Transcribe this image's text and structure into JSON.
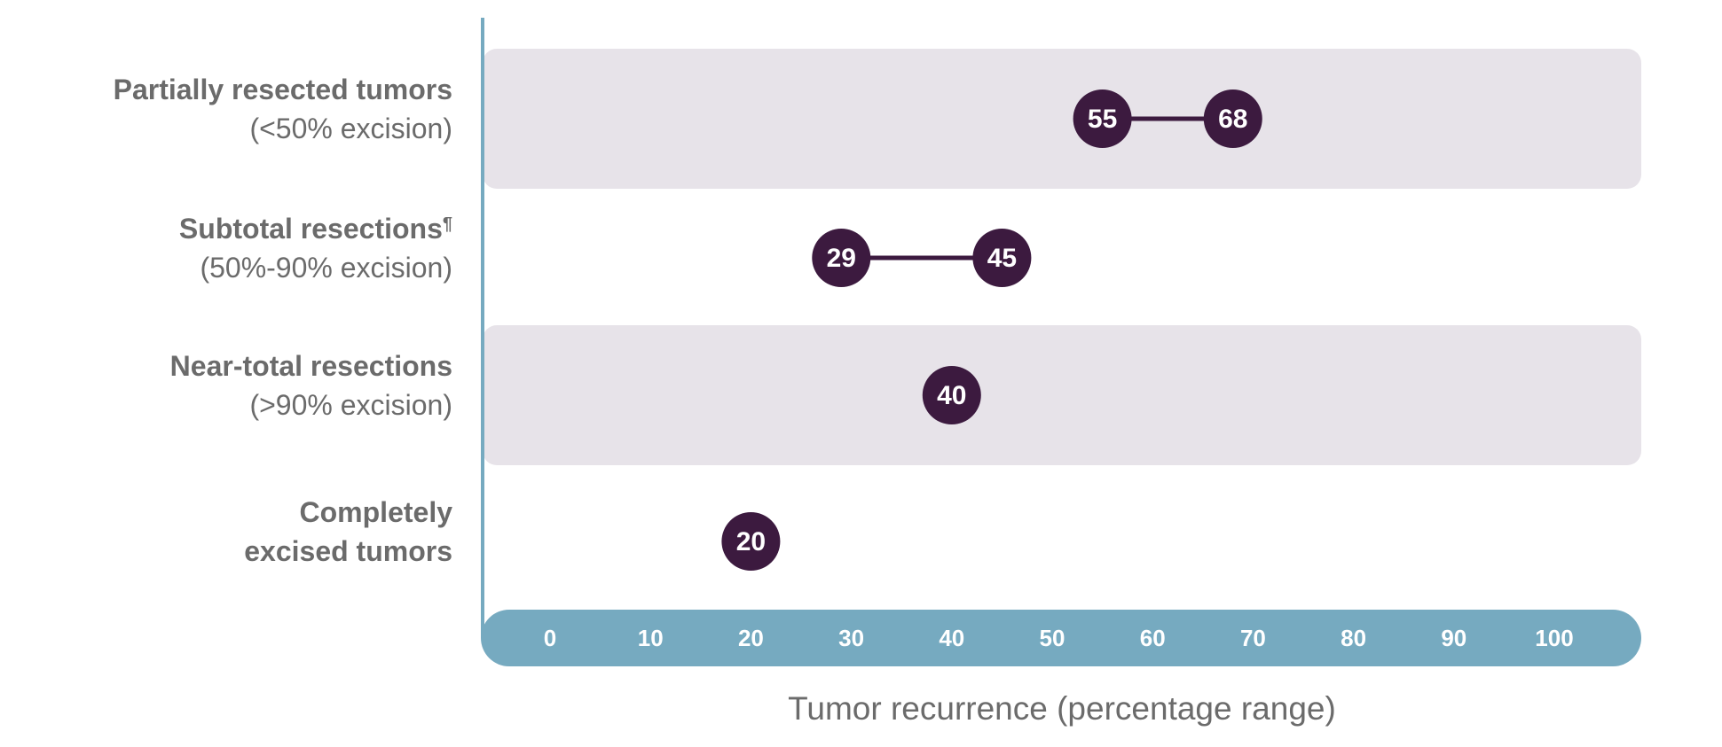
{
  "chart_data": {
    "type": "range-dot",
    "xlabel": "Tumor recurrence (percentage range)",
    "xlim": [
      0,
      100
    ],
    "ticks": [
      0,
      10,
      20,
      30,
      40,
      50,
      60,
      70,
      80,
      90,
      100
    ],
    "categories": [
      {
        "title": "Partially resected tumors",
        "subtitle": "(<50% excision)",
        "values": [
          55,
          68
        ],
        "shaded": true
      },
      {
        "title": "Subtotal resections¶",
        "subtitle": "(50%-90% excision)",
        "values": [
          29,
          45
        ],
        "shaded": false
      },
      {
        "title": "Near-total resections",
        "subtitle": "(>90% excision)",
        "values": [
          40
        ],
        "shaded": true
      },
      {
        "title": "Completely",
        "subtitle": "excised tumors",
        "values": [
          20
        ],
        "shaded": false,
        "subtitle_bold": true
      }
    ],
    "colors": {
      "axis": "#76aac0",
      "band": "#e7e3e9",
      "dot": "#3c1a3f",
      "text": "#6b6b6b"
    }
  }
}
